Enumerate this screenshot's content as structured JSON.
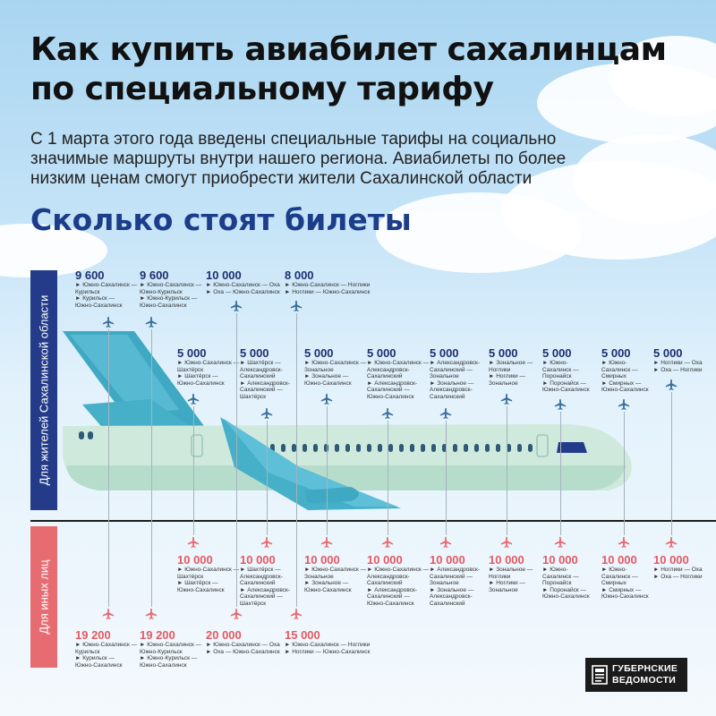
{
  "title": {
    "line1": "Как купить авиабилет сахалинцам",
    "line2": "по специальному тарифу"
  },
  "intro": {
    "line1": "С 1 марта этого года введены специальные тарифы на социально",
    "line2": "значимые маршруты внутри нашего региона. Авиабилеты по более",
    "line3": "низким ценам смогут приобрести жители Сахалинской области"
  },
  "section_title": "Сколько стоят билеты",
  "labels": {
    "residents": "Для жителей Сахалинской области",
    "others": "Для иных лиц"
  },
  "residents_prices": [
    {
      "price": "9 600",
      "route": "► Южно-Сахалинск —\nКурильск\n► Курильск —\nЮжно-Сахалинск"
    },
    {
      "price": "9 600",
      "route": "► Южно-Сахалинск —\nЮжно-Курильск\n► Южно-Курильск —\nЮжно-Сахалинск"
    },
    {
      "price": "10 000",
      "route": "► Южно-Сахалинск — Оха\n► Оха — Южно-Сахалинск"
    },
    {
      "price": "8 000",
      "route": "► Южно-Сахалинск — Ноглики\n► Ноглики — Южно-Сахалинск"
    },
    {
      "price": "5 000",
      "route": "► Южно-Сахалинск —\nШахтёрск\n► Шахтёрск —\nЮжно-Сахалинск"
    },
    {
      "price": "5 000",
      "route": "► Шахтёрск —\nАлександровск-\nСахалинский\n► Александровск-\nСахалинский —\nШахтёрск"
    },
    {
      "price": "5 000",
      "route": "► Южно-Сахалинск —\nЗональное\n► Зональное —\nЮжно-Сахалинск"
    },
    {
      "price": "5 000",
      "route": "► Южно-Сахалинск —\nАлександровск-\nСахалинский\n► Александровск-\nСахалинский —\nЮжно-Сахалинск"
    },
    {
      "price": "5 000",
      "route": "► Александровск-\nСахалинский —\nЗональное\n► Зональное —\nАлександровск-\nСахалинский"
    },
    {
      "price": "5 000",
      "route": "► Зональное —\nНоглики\n► Ноглики —\nЗональное"
    },
    {
      "price": "5 000",
      "route": "► Южно-\nСахалинск —\nПоронайск\n► Поронайск —\nЮжно-Сахалинск"
    },
    {
      "price": "5 000",
      "route": "► Южно-\nСахалинск —\nСмирных\n► Смирных —\nЮжно-Сахалинск"
    },
    {
      "price": "5 000",
      "route": "► Ноглики — Оха\n► Оха — Ноглики"
    }
  ],
  "others_prices": [
    {
      "price": "19 200",
      "route": "► Южно-Сахалинск —\nКурильск\n► Курильск —\nЮжно-Сахалинск"
    },
    {
      "price": "19 200",
      "route": "► Южно-Сахалинск —\nЮжно-Курильск\n► Южно-Курильск —\nЮжно-Сахалинск"
    },
    {
      "price": "20 000",
      "route": "► Южно-Сахалинск — Оха\n► Оха — Южно-Сахалинск"
    },
    {
      "price": "15 000",
      "route": "► Южно-Сахалинск — Ноглики\n► Ноглики — Южно-Сахалинск"
    },
    {
      "price": "10 000",
      "route": "► Южно-Сахалинск —\nШахтёрск\n► Шахтёрск —\nЮжно-Сахалинск"
    },
    {
      "price": "10 000",
      "route": "► Шахтёрск —\nАлександровск-\nСахалинский\n► Александровск-\nСахалинский —\nШахтёрск"
    },
    {
      "price": "10 000",
      "route": "► Южно-Сахалинск —\nЗональное\n► Зональное —\nЮжно-Сахалинск"
    },
    {
      "price": "10 000",
      "route": "► Южно-Сахалинск —\nАлександровск-\nСахалинский\n► Александровск-\nСахалинский —\nЮжно-Сахалинск"
    },
    {
      "price": "10 000",
      "route": "► Александровск-\nСахалинский —\nЗональное\n► Зональное —\nАлександровск-\nСахалинский"
    },
    {
      "price": "10 000",
      "route": "► Зональное —\nНоглики\n► Ноглики —\nЗональное"
    },
    {
      "price": "10 000",
      "route": "► Южно-\nСахалинск —\nПоронайск\n► Поронайск —\nЮжно-Сахалинск"
    },
    {
      "price": "10 000",
      "route": "► Южно-\nСахалинск —\nСмирных\n► Смирных —\nЮжно-Сахалинск"
    },
    {
      "price": "10 000",
      "route": "► Ноглики — Оха\n► Оха — Ноглики"
    }
  ],
  "logo": {
    "line1": "ГУБЕРНСКИЕ",
    "line2": "ВЕДОМОСТИ"
  },
  "colors": {
    "residents_accent": "#233b88",
    "others_accent": "#e76c72",
    "plane_body": "#cfe9dc",
    "plane_tail": "#3fa8c3"
  },
  "icons": [
    "airplane-icon",
    "newspaper-logo-icon"
  ]
}
